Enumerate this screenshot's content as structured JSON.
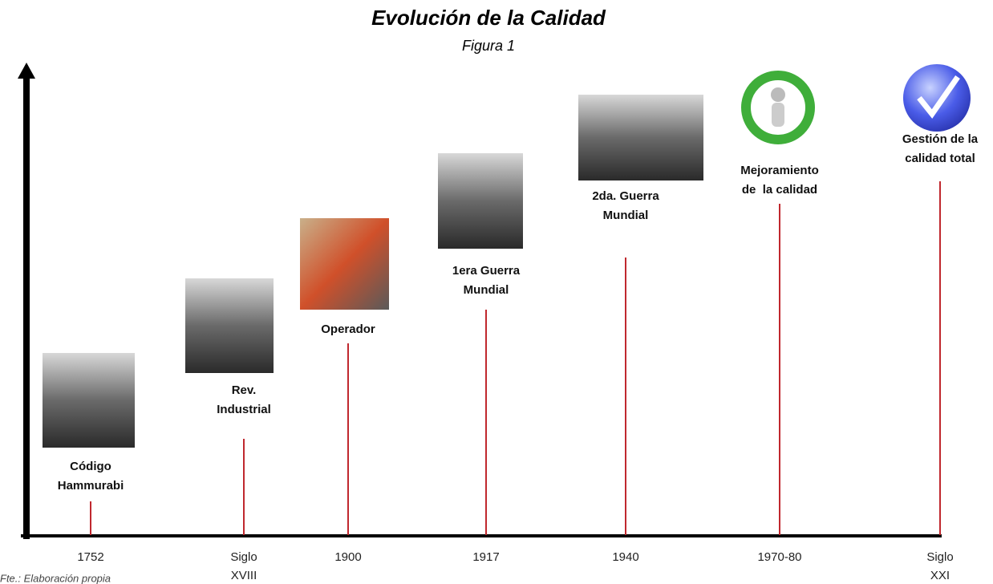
{
  "title": "Evolución de la Calidad",
  "subtitle": "Figura 1",
  "footer": "Fte.: Elaboración propia",
  "events": [
    {
      "label": [
        "Código",
        "Hammurabi"
      ],
      "date": [
        "1752"
      ]
    },
    {
      "label": [
        "Rev.",
        "Industrial"
      ],
      "date": [
        "Siglo",
        "XVIII"
      ]
    },
    {
      "label": [
        "Operador"
      ],
      "date": [
        "1900"
      ]
    },
    {
      "label": [
        "1era Guerra",
        "Mundial"
      ],
      "date": [
        "1917"
      ]
    },
    {
      "label": [
        "2da. Guerra",
        "Mundial"
      ],
      "date": [
        "1940"
      ]
    },
    {
      "label": [
        "Mejoramiento",
        "de  la calidad"
      ],
      "date": [
        "1970-80"
      ]
    },
    {
      "label": [
        "Gestión de la",
        "calidad total"
      ],
      "date": [
        "Siglo",
        "XXI"
      ]
    }
  ]
}
